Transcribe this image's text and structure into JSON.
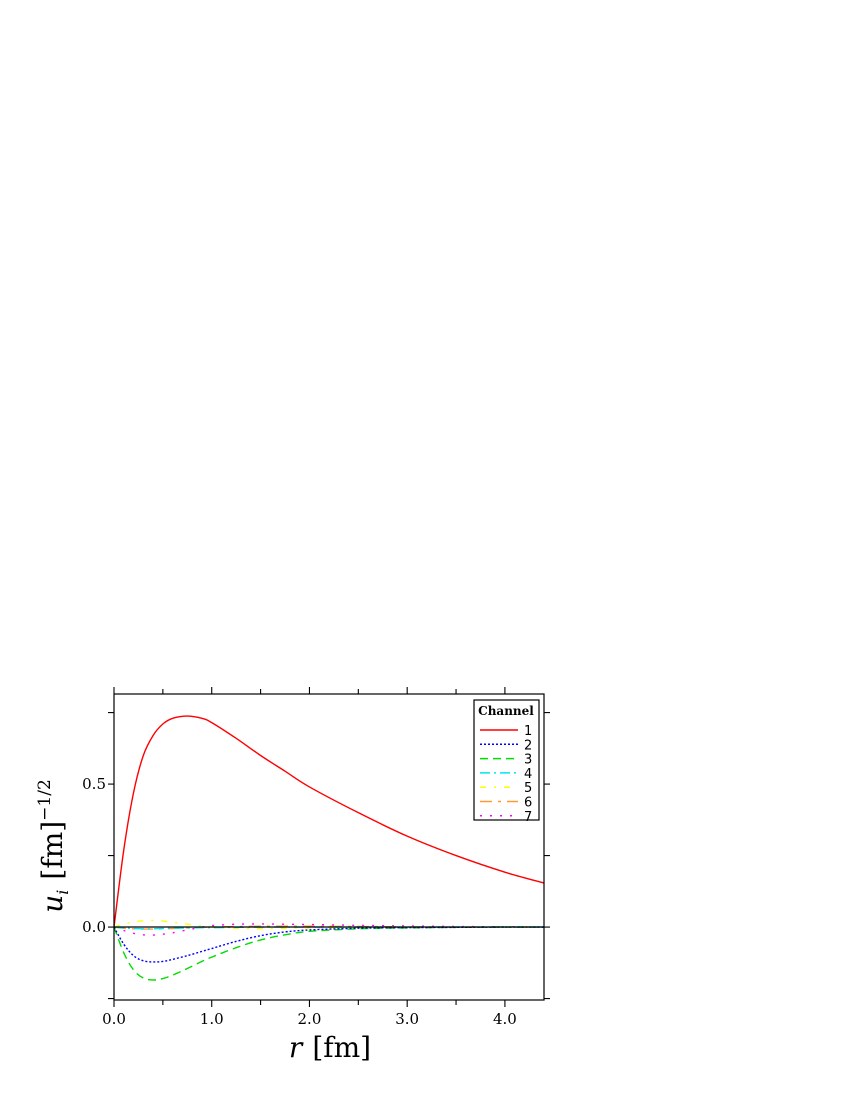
{
  "chart_data": {
    "type": "line",
    "title": "",
    "xlabel": "r [fm]",
    "ylabel": "u_i [fm]^{-1/2}",
    "xlim": [
      0.0,
      4.4
    ],
    "ylim": [
      -0.255,
      0.815
    ],
    "x_ticks": [
      "0.0",
      "1.0",
      "2.0",
      "3.0",
      "4.0"
    ],
    "y_ticks": [
      "0.0",
      "0.5"
    ],
    "grid": false,
    "legend": {
      "title": "Channel",
      "position": "upper right"
    },
    "x": [
      0.0,
      0.1,
      0.2,
      0.3,
      0.4,
      0.5,
      0.6,
      0.75,
      0.9,
      1.0,
      1.25,
      1.5,
      1.75,
      2.0,
      2.5,
      3.0,
      3.5,
      4.0,
      4.4
    ],
    "series": [
      {
        "name": "1",
        "color": "#ff0000",
        "dash": "solid",
        "values": [
          0.0,
          0.27,
          0.47,
          0.6,
          0.67,
          0.71,
          0.73,
          0.738,
          0.73,
          0.715,
          0.66,
          0.6,
          0.545,
          0.49,
          0.4,
          0.318,
          0.25,
          0.192,
          0.154
        ]
      },
      {
        "name": "2",
        "color": "#0000ff",
        "dash": "dotted",
        "values": [
          0.0,
          -0.06,
          -0.1,
          -0.118,
          -0.122,
          -0.12,
          -0.113,
          -0.1,
          -0.085,
          -0.075,
          -0.05,
          -0.03,
          -0.017,
          -0.01,
          -0.004,
          -0.002,
          -0.001,
          0.0,
          0.0
        ]
      },
      {
        "name": "3",
        "color": "#00dd00",
        "dash": "dashed",
        "values": [
          0.0,
          -0.09,
          -0.15,
          -0.178,
          -0.185,
          -0.18,
          -0.168,
          -0.145,
          -0.12,
          -0.105,
          -0.072,
          -0.045,
          -0.027,
          -0.015,
          -0.006,
          -0.003,
          -0.001,
          0.0,
          0.0
        ]
      },
      {
        "name": "4",
        "color": "#00e5ee",
        "dash": "dash-dot",
        "values": [
          0.0,
          -0.003,
          -0.005,
          -0.006,
          -0.006,
          -0.005,
          -0.004,
          -0.003,
          -0.002,
          -0.002,
          -0.001,
          0.0,
          0.0,
          0.0,
          0.0,
          0.0,
          0.0,
          0.0,
          0.0
        ]
      },
      {
        "name": "5",
        "color": "#ffff00",
        "dash": "dash-dot-sparse",
        "values": [
          0.0,
          0.01,
          0.018,
          0.022,
          0.023,
          0.021,
          0.017,
          0.01,
          0.003,
          0.0,
          -0.004,
          -0.005,
          -0.004,
          -0.003,
          -0.002,
          -0.001,
          0.0,
          0.0,
          0.0
        ]
      },
      {
        "name": "6",
        "color": "#ff9933",
        "dash": "long-dash-dot",
        "values": [
          0.0,
          -0.004,
          -0.006,
          -0.007,
          -0.007,
          -0.006,
          -0.005,
          -0.003,
          -0.001,
          0.0,
          0.002,
          0.003,
          0.003,
          0.003,
          0.002,
          0.001,
          0.0,
          0.0,
          0.0
        ]
      },
      {
        "name": "7",
        "color": "#ff00ff",
        "dash": "sparse-dotted",
        "values": [
          0.0,
          -0.012,
          -0.022,
          -0.027,
          -0.028,
          -0.025,
          -0.02,
          -0.01,
          0.0,
          0.005,
          0.01,
          0.011,
          0.01,
          0.009,
          0.006,
          0.004,
          0.002,
          0.001,
          0.0
        ]
      }
    ]
  },
  "labels": {
    "xlabel_italic": "r",
    "xlabel_unit": "[fm]",
    "ylabel_italic": "u",
    "ylabel_sub": "i",
    "ylabel_unit": "[fm]",
    "ylabel_sup": "−1/2",
    "legend_title": "Channel"
  }
}
